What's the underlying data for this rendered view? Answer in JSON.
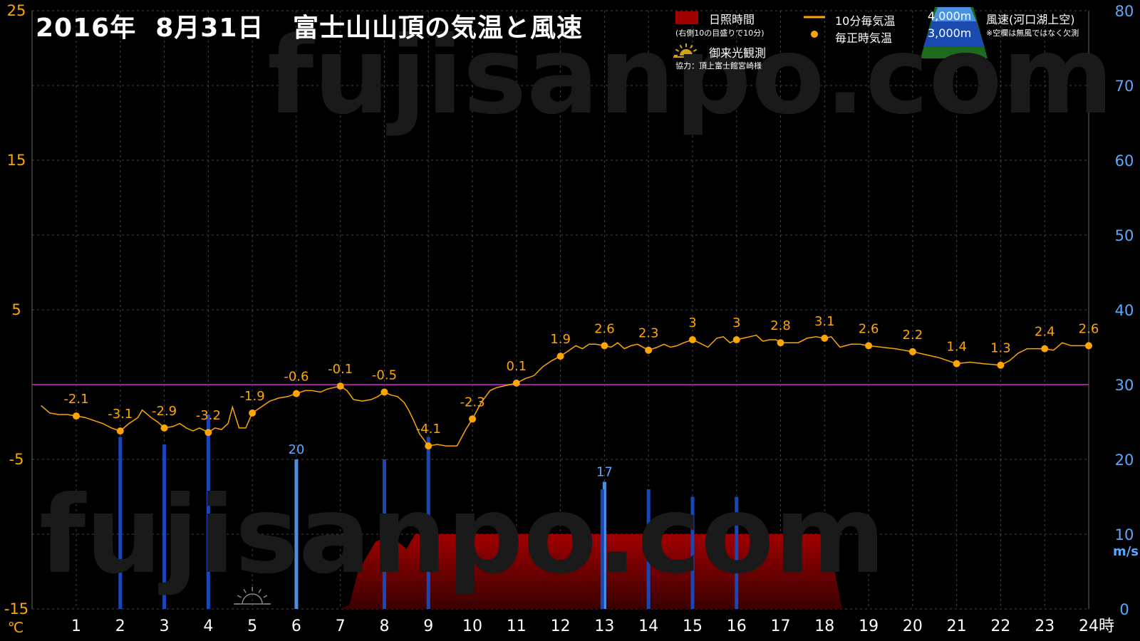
{
  "title": "2016年  8月31日   富士山山頂の気温と風速",
  "watermark": "fujisanpo.com",
  "legend": {
    "sunshine": "日照時間",
    "sunshine_note": "(右側10の目盛りで10分)",
    "sunrise": "御来光観測",
    "coop": "協力：頂上富士館宮崎様",
    "temp10": "10分毎気温",
    "temp_hourly": "毎正時気温",
    "alt4000": "4,000m",
    "alt3000": "3,000m",
    "wind": "風速(河口湖上空)",
    "wind_note": "※空欄は無風ではなく欠測"
  },
  "colors": {
    "temp": "#ffa500",
    "wind_dark": "#1a47b8",
    "wind_light": "#4a90e2",
    "sunshine": "#8b0000",
    "zero_line": "#a020a0",
    "grid": "#444444",
    "left_axis": "#ffa500",
    "right_axis": "#5aa9ff"
  },
  "chart_data": {
    "type": "line",
    "x_label_unit": "時",
    "y_left_unit": "℃",
    "y_right_unit": "m/s",
    "y_left_ticks": [
      "25",
      "15",
      "5",
      "-5",
      "-15"
    ],
    "y_left_range": [
      -15,
      25
    ],
    "y_right_ticks": [
      "80",
      "70",
      "60",
      "50",
      "40",
      "30",
      "20",
      "10",
      "0"
    ],
    "y_right_range": [
      0,
      80
    ],
    "x_ticks": [
      "1",
      "2",
      "3",
      "4",
      "5",
      "6",
      "7",
      "8",
      "9",
      "10",
      "11",
      "12",
      "13",
      "14",
      "15",
      "16",
      "17",
      "18",
      "19",
      "20",
      "21",
      "22",
      "23",
      "24"
    ],
    "x_range": [
      0.2,
      24
    ],
    "hourly_temp": [
      {
        "hour": 1,
        "temp": -2.1
      },
      {
        "hour": 2,
        "temp": -3.1
      },
      {
        "hour": 3,
        "temp": -2.9
      },
      {
        "hour": 4,
        "temp": -3.2
      },
      {
        "hour": 5,
        "temp": -1.9
      },
      {
        "hour": 6,
        "temp": -0.6
      },
      {
        "hour": 7,
        "temp": -0.1
      },
      {
        "hour": 8,
        "temp": -0.5
      },
      {
        "hour": 9,
        "temp": -4.1
      },
      {
        "hour": 10,
        "temp": -2.3
      },
      {
        "hour": 11,
        "temp": 0.1
      },
      {
        "hour": 12,
        "temp": 1.9
      },
      {
        "hour": 13,
        "temp": 2.6
      },
      {
        "hour": 14,
        "temp": 2.3
      },
      {
        "hour": 15,
        "temp": 3
      },
      {
        "hour": 16,
        "temp": 3
      },
      {
        "hour": 17,
        "temp": 2.8
      },
      {
        "hour": 18,
        "temp": 3.1
      },
      {
        "hour": 19,
        "temp": 2.6
      },
      {
        "hour": 20,
        "temp": 2.2
      },
      {
        "hour": 21,
        "temp": 1.4
      },
      {
        "hour": 22,
        "temp": 1.3
      },
      {
        "hour": 23,
        "temp": 2.4
      },
      {
        "hour": 24,
        "temp": 2.6
      }
    ],
    "ten_min_temp": [
      [
        0.2,
        -1.4
      ],
      [
        0.4,
        -1.9
      ],
      [
        0.6,
        -2.0
      ],
      [
        0.8,
        -2.0
      ],
      [
        1.0,
        -2.1
      ],
      [
        1.2,
        -2.2
      ],
      [
        1.4,
        -2.4
      ],
      [
        1.6,
        -2.6
      ],
      [
        1.8,
        -2.9
      ],
      [
        2.0,
        -3.1
      ],
      [
        2.2,
        -2.6
      ],
      [
        2.4,
        -2.2
      ],
      [
        2.5,
        -1.7
      ],
      [
        2.7,
        -2.2
      ],
      [
        2.85,
        -2.5
      ],
      [
        3.0,
        -2.9
      ],
      [
        3.2,
        -2.8
      ],
      [
        3.35,
        -2.6
      ],
      [
        3.5,
        -2.9
      ],
      [
        3.65,
        -3.1
      ],
      [
        3.8,
        -2.9
      ],
      [
        4.0,
        -3.2
      ],
      [
        4.15,
        -2.9
      ],
      [
        4.3,
        -3.0
      ],
      [
        4.45,
        -2.6
      ],
      [
        4.55,
        -1.5
      ],
      [
        4.7,
        -2.9
      ],
      [
        4.85,
        -2.9
      ],
      [
        5.0,
        -1.9
      ],
      [
        5.2,
        -1.5
      ],
      [
        5.4,
        -1.1
      ],
      [
        5.6,
        -0.9
      ],
      [
        5.8,
        -0.8
      ],
      [
        6.0,
        -0.6
      ],
      [
        6.2,
        -0.4
      ],
      [
        6.35,
        -0.4
      ],
      [
        6.55,
        -0.5
      ],
      [
        6.7,
        -0.3
      ],
      [
        6.85,
        -0.2
      ],
      [
        7.0,
        -0.1
      ],
      [
        7.15,
        -0.4
      ],
      [
        7.3,
        -1.0
      ],
      [
        7.5,
        -1.1
      ],
      [
        7.7,
        -1.0
      ],
      [
        7.85,
        -0.8
      ],
      [
        8.0,
        -0.5
      ],
      [
        8.15,
        -0.7
      ],
      [
        8.3,
        -0.8
      ],
      [
        8.45,
        -1.2
      ],
      [
        8.55,
        -1.7
      ],
      [
        8.65,
        -2.3
      ],
      [
        8.8,
        -3.3
      ],
      [
        9.0,
        -4.1
      ],
      [
        9.2,
        -4.0
      ],
      [
        9.4,
        -4.1
      ],
      [
        9.65,
        -4.1
      ],
      [
        9.85,
        -3.0
      ],
      [
        10.0,
        -2.3
      ],
      [
        10.2,
        -1.2
      ],
      [
        10.4,
        -0.4
      ],
      [
        10.55,
        -0.2
      ],
      [
        10.7,
        -0.1
      ],
      [
        10.85,
        0.0
      ],
      [
        11.0,
        0.1
      ],
      [
        11.2,
        0.4
      ],
      [
        11.4,
        0.6
      ],
      [
        11.6,
        1.2
      ],
      [
        11.8,
        1.6
      ],
      [
        12.0,
        1.9
      ],
      [
        12.2,
        2.3
      ],
      [
        12.35,
        2.6
      ],
      [
        12.5,
        2.4
      ],
      [
        12.65,
        2.7
      ],
      [
        12.8,
        2.7
      ],
      [
        13.0,
        2.6
      ],
      [
        13.15,
        2.5
      ],
      [
        13.3,
        2.8
      ],
      [
        13.45,
        2.4
      ],
      [
        13.6,
        2.6
      ],
      [
        13.75,
        2.7
      ],
      [
        14.0,
        2.3
      ],
      [
        14.2,
        2.5
      ],
      [
        14.35,
        2.7
      ],
      [
        14.5,
        2.5
      ],
      [
        14.65,
        2.6
      ],
      [
        14.8,
        2.8
      ],
      [
        15.0,
        3.0
      ],
      [
        15.15,
        2.8
      ],
      [
        15.35,
        2.5
      ],
      [
        15.55,
        3.1
      ],
      [
        15.7,
        3.2
      ],
      [
        15.85,
        2.8
      ],
      [
        16.0,
        3.0
      ],
      [
        16.15,
        3.1
      ],
      [
        16.3,
        3.2
      ],
      [
        16.45,
        3.3
      ],
      [
        16.6,
        2.9
      ],
      [
        16.75,
        3.0
      ],
      [
        16.9,
        3.0
      ],
      [
        17.0,
        2.8
      ],
      [
        17.2,
        2.8
      ],
      [
        17.4,
        2.8
      ],
      [
        17.6,
        3.1
      ],
      [
        17.8,
        3.2
      ],
      [
        18.0,
        3.1
      ],
      [
        18.15,
        3.2
      ],
      [
        18.35,
        2.5
      ],
      [
        18.6,
        2.7
      ],
      [
        18.8,
        2.7
      ],
      [
        19.0,
        2.6
      ],
      [
        19.3,
        2.5
      ],
      [
        19.6,
        2.4
      ],
      [
        20.0,
        2.2
      ],
      [
        20.3,
        2.0
      ],
      [
        20.6,
        1.8
      ],
      [
        21.0,
        1.4
      ],
      [
        21.3,
        1.5
      ],
      [
        21.6,
        1.4
      ],
      [
        22.0,
        1.3
      ],
      [
        22.2,
        1.6
      ],
      [
        22.4,
        2.1
      ],
      [
        22.6,
        2.4
      ],
      [
        22.8,
        2.4
      ],
      [
        23.0,
        2.4
      ],
      [
        23.2,
        2.3
      ],
      [
        23.4,
        2.8
      ],
      [
        23.6,
        2.6
      ],
      [
        23.8,
        2.6
      ],
      [
        24.0,
        2.6
      ]
    ],
    "wind_speed": [
      {
        "hour": 2,
        "speed": 23,
        "label": ""
      },
      {
        "hour": 3,
        "speed": 22,
        "label": ""
      },
      {
        "hour": 4,
        "speed": 26,
        "label": ""
      },
      {
        "hour": 6,
        "speed": 20,
        "label": "20"
      },
      {
        "hour": 8,
        "speed": 20,
        "label": ""
      },
      {
        "hour": 9,
        "speed": 23,
        "label": ""
      },
      {
        "hour": 13,
        "speed": 17,
        "label": "17"
      },
      {
        "hour": 12.95,
        "speed": 16,
        "label": ""
      },
      {
        "hour": 14,
        "speed": 16,
        "label": ""
      },
      {
        "hour": 15,
        "speed": 15,
        "label": ""
      },
      {
        "hour": 16,
        "speed": 15,
        "label": ""
      }
    ],
    "sunshine": [
      [
        7.0,
        0
      ],
      [
        7.2,
        0.5
      ],
      [
        7.4,
        5
      ],
      [
        7.6,
        7
      ],
      [
        7.8,
        9
      ],
      [
        8.0,
        9.5
      ],
      [
        8.1,
        8.5
      ],
      [
        8.3,
        9
      ],
      [
        8.5,
        8
      ],
      [
        8.7,
        10
      ],
      [
        8.9,
        10
      ],
      [
        9.0,
        9
      ],
      [
        9.1,
        10
      ],
      [
        10,
        10
      ],
      [
        12,
        10
      ],
      [
        14,
        10
      ],
      [
        16,
        10
      ],
      [
        17.9,
        10
      ],
      [
        18.1,
        9
      ],
      [
        18.3,
        3
      ],
      [
        18.4,
        0
      ]
    ],
    "zero_line": 0
  }
}
